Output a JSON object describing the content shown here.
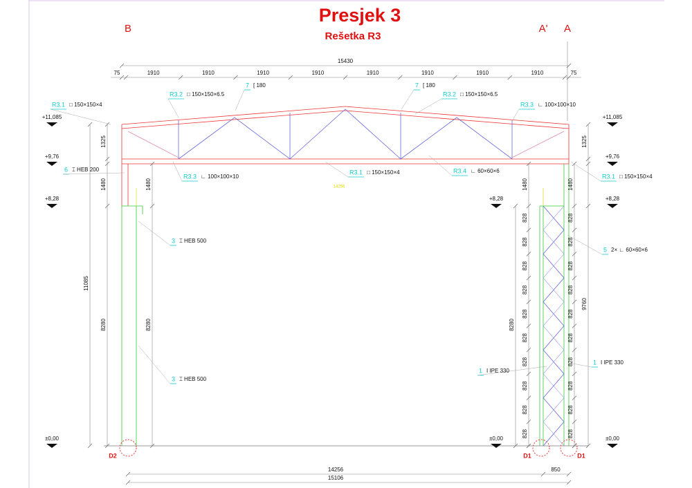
{
  "title": "Presjek 3",
  "subtitle": "Rešetka R3",
  "axes": [
    "B",
    "A'",
    "A"
  ],
  "dimensions": {
    "overall_top": "15430",
    "top_segments": [
      "75",
      "1910",
      "1910",
      "1910",
      "1910",
      "1910",
      "1910",
      "1910",
      "1910",
      "75"
    ],
    "left": [
      "1325",
      "1480",
      "11085",
      "8280",
      "1480",
      "8280"
    ],
    "right": [
      "1480",
      "1480",
      "1325",
      "9760",
      "8280"
    ],
    "panels_inner": [
      "828",
      "828",
      "828",
      "828",
      "828",
      "828",
      "828",
      "828",
      "828",
      "828"
    ],
    "panels_outer": [
      "828",
      "828",
      "828",
      "828",
      "828",
      "828",
      "828",
      "828",
      "828",
      "828"
    ],
    "bottom": [
      "14256",
      "15106",
      "850"
    ],
    "center_note": "14256"
  },
  "elevations": {
    "left": [
      "+11,085",
      "+9,76",
      "+8,28",
      "±0,00"
    ],
    "right": [
      "+11,085",
      "+9,76",
      "+8,28",
      "±0,00"
    ],
    "inner": [
      "+8,28",
      "±0,00"
    ]
  },
  "members": [
    {
      "mark": "R3.1",
      "profile": "□ 150×150×4"
    },
    {
      "mark": "R3.2",
      "profile": "□ 150×150×6.5"
    },
    {
      "mark": "7",
      "profile": "[ 180"
    },
    {
      "mark": "7",
      "profile": "[ 180"
    },
    {
      "mark": "R3.2",
      "profile": "□ 150×150×6.5"
    },
    {
      "mark": "R3.3",
      "profile": "∟ 100×100×10"
    },
    {
      "mark": "6",
      "profile": "⌶ HEB 200"
    },
    {
      "mark": "R3.3",
      "profile": "∟ 100×100×10"
    },
    {
      "mark": "R3.1",
      "profile": "□ 150×150×4"
    },
    {
      "mark": "R3.4",
      "profile": "∟ 60×60×6"
    },
    {
      "mark": "R3.1",
      "profile": "□ 150×150×4"
    },
    {
      "mark": "3",
      "profile": "⌶ HEB 500"
    },
    {
      "mark": "5",
      "profile": "2× ∟ 60×60×6"
    },
    {
      "mark": "3",
      "profile": "⌶ HEB 500"
    },
    {
      "mark": "1",
      "profile": "I IPE 330"
    },
    {
      "mark": "1",
      "profile": "I IPE 330"
    }
  ],
  "supports": [
    "D2",
    "D1",
    "D1"
  ]
}
